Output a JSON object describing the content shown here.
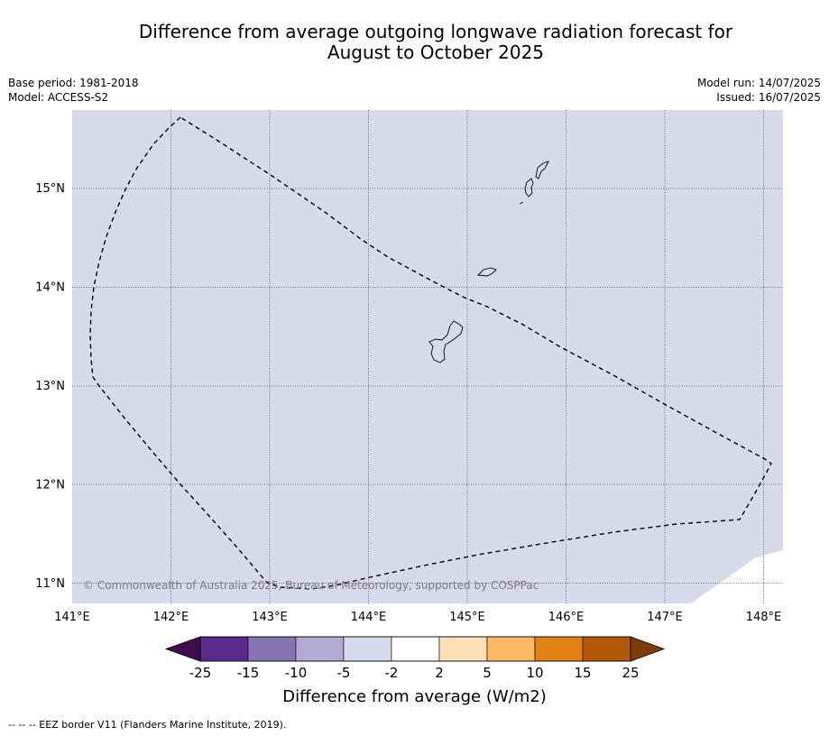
{
  "title": {
    "line1": "Difference from average outgoing longwave radiation forecast for",
    "line2": "August to October 2025"
  },
  "meta": {
    "base_period": "Base period: 1981-2018",
    "model": "Model: ACCESS-S2",
    "model_run": "Model run: 14/07/2025",
    "issued": "Issued: 16/07/2025"
  },
  "map": {
    "lon_labels": [
      "141°E",
      "142°E",
      "143°E",
      "144°E",
      "145°E",
      "146°E",
      "147°E",
      "148°E"
    ],
    "lat_labels": [
      "15°N",
      "14°N",
      "13°N",
      "12°N",
      "11°N"
    ],
    "lon_range": [
      141.0,
      148.2
    ],
    "lat_range": [
      10.8,
      15.8
    ],
    "fill_color": "#d8d9ea",
    "copyright": "© Commonwealth of Australia 2025, Bureau of Meteorology, supported by COSPPac"
  },
  "colorbar": {
    "tick_labels": [
      "-25",
      "-15",
      "-10",
      "-5",
      "-2",
      "2",
      "5",
      "10",
      "15",
      "25"
    ],
    "colors": [
      "#3f0d4e",
      "#5b2a8d",
      "#8675b2",
      "#b2aad3",
      "#d8d9ea",
      "#ffffff",
      "#fee0b6",
      "#fdb863",
      "#e08214",
      "#b35806",
      "#7f3b08"
    ],
    "label": "Difference from average (W/m2)"
  },
  "footnote": "--  --  -- EEZ border V11 (Flanders Marine Institute, 2019)."
}
